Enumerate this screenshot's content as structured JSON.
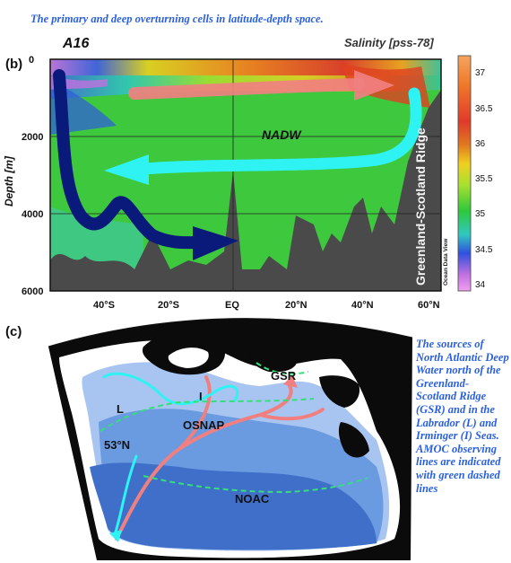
{
  "caption_top": "The primary and deep overturning cells in latitude-depth space.",
  "caption_side": "The sources of North Atlantic Deep Water north of the Greenland-Scotland Ridge (GSR) and in the Labrador (L) and Irminger (I) Seas. AMOC observing lines are indicated with green dashed lines",
  "panel_b": {
    "label": "(b)",
    "section": "A16",
    "variable": "Salinity [pss-78]",
    "y_axis_label": "Depth [m]",
    "y_ticks": [
      "0",
      "2000",
      "4000",
      "6000"
    ],
    "x_ticks": [
      "40°S",
      "20°S",
      "EQ",
      "20°N",
      "40°N",
      "60°N"
    ],
    "nadw_label": "NADW",
    "ridge_label": "Greenland-Scotland Ridge",
    "watermark": "Ocean Data View",
    "colorbar_ticks": [
      "37",
      "36.5",
      "36",
      "35.5",
      "35",
      "34.5",
      "34"
    ]
  },
  "panel_c": {
    "label": "(c)",
    "labels": {
      "gsr": "GSR",
      "labrador": "L",
      "irminger": "I",
      "osnap": "OSNAP",
      "lat53": "53°N",
      "noac": "NOAC"
    }
  },
  "colors": {
    "caption": "#2a5fe0",
    "upper_cell_arrow": "#f08080",
    "nadw_arrow": "#2ff3f3",
    "deep_arrow": "#0a1a7a",
    "observing_lines": "#33e07a"
  }
}
